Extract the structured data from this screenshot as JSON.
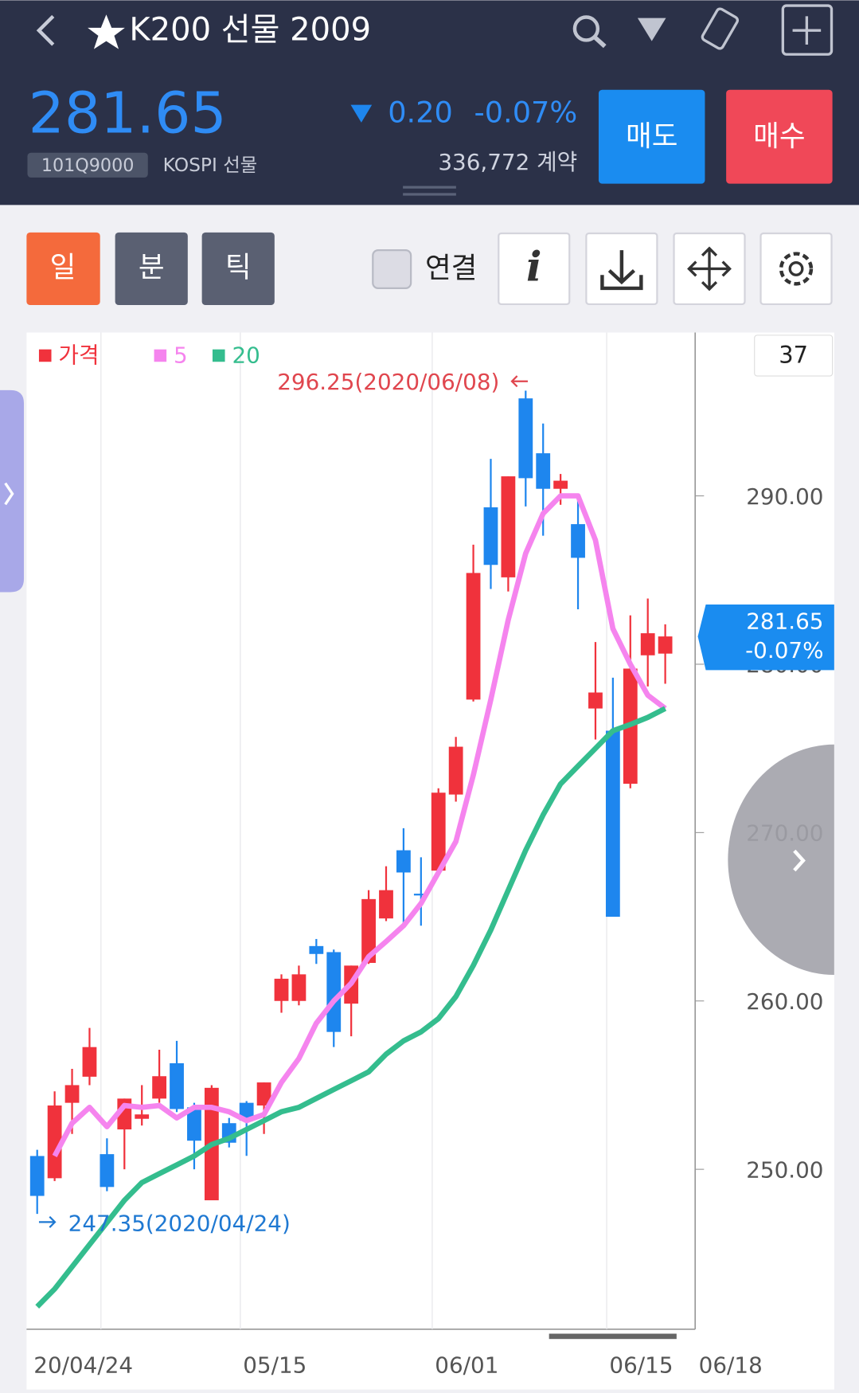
{
  "header": {
    "title": "K200 선물 2009",
    "price": "281.65",
    "change": "0.20",
    "change_pct": "-0.07%",
    "code": "101Q9000",
    "market": "KOSPI 선물",
    "volume": "336,772 계약",
    "sell": "매도",
    "buy": "매수"
  },
  "toolbar": {
    "tabs": [
      "일",
      "분",
      "틱"
    ],
    "link": "연결",
    "info": "i"
  },
  "chart_data": {
    "type": "candlestick",
    "categories": [
      "20/04/24",
      null,
      null,
      null,
      null,
      null,
      null,
      null,
      null,
      null,
      null,
      null,
      "05/15",
      null,
      null,
      null,
      null,
      null,
      null,
      null,
      null,
      null,
      null,
      "06/01",
      null,
      null,
      null,
      null,
      null,
      null,
      null,
      null,
      null,
      "06/15",
      null,
      null,
      "06/18"
    ],
    "candles": {
      "name": "가격",
      "up_color": "#f0323c",
      "down_color": "#1e86ee",
      "open": [
        250.79,
        249.47,
        253.95,
        255.5,
        250.9,
        252.37,
        253.0,
        254.2,
        256.3,
        253.68,
        248.16,
        252.74,
        253.95,
        253.79,
        260.0,
        260.0,
        263.26,
        262.9,
        259.84,
        262.26,
        264.9,
        268.95,
        266.37,
        267.74,
        272.26,
        277.9,
        289.32,
        285.16,
        295.79,
        292.53,
        290.42,
        288.32,
        277.37,
        276.05,
        272.9,
        280.53,
        280.63
      ],
      "high": [
        251.16,
        254.63,
        255.97,
        258.4,
        251.84,
        254.2,
        255.0,
        257.1,
        257.63,
        253.95,
        255.0,
        253.05,
        254.05,
        255.16,
        261.58,
        262.1,
        263.68,
        263.05,
        262.1,
        266.58,
        268.0,
        270.26,
        268.53,
        272.63,
        275.68,
        287.1,
        292.2,
        291.16,
        296.25,
        294.3,
        291.3,
        289.9,
        281.32,
        279.2,
        282.9,
        283.9,
        282.37
      ],
      "low": [
        247.35,
        249.3,
        252.1,
        255.0,
        248.7,
        250.0,
        252.6,
        253.95,
        253.4,
        250.0,
        248.16,
        251.3,
        250.8,
        252.1,
        259.3,
        259.74,
        262.2,
        257.26,
        257.9,
        262.2,
        264.74,
        264.37,
        264.47,
        267.63,
        271.84,
        277.79,
        284.47,
        284.32,
        289.37,
        287.63,
        289.47,
        283.26,
        275.53,
        265.0,
        272.63,
        278.68,
        278.84
      ],
      "close": [
        248.42,
        253.79,
        255.0,
        257.26,
        248.95,
        254.2,
        253.26,
        255.53,
        253.58,
        251.7,
        254.84,
        251.58,
        252.9,
        255.16,
        261.32,
        261.58,
        262.79,
        258.16,
        262.1,
        266.05,
        266.58,
        267.63,
        266.3,
        272.37,
        275.1,
        285.42,
        285.9,
        291.16,
        291.05,
        290.42,
        290.9,
        286.32,
        278.32,
        265.0,
        279.74,
        281.84,
        281.65
      ]
    },
    "series": [
      {
        "name": "5",
        "color": "#f584ee",
        "values": [
          null,
          250.79,
          252.74,
          253.68,
          252.53,
          253.79,
          253.68,
          253.79,
          253.05,
          253.68,
          253.68,
          253.42,
          252.89,
          253.26,
          255.16,
          256.58,
          258.68,
          260.0,
          261.05,
          262.63,
          263.53,
          264.47,
          265.79,
          267.63,
          269.47,
          273.42,
          277.89,
          282.63,
          286.58,
          288.95,
          290.0,
          290.0,
          287.37,
          282.11,
          280.0,
          278.16,
          277.37
        ]
      },
      {
        "name": "20",
        "color": "#34bd8e",
        "values": [
          241.84,
          242.89,
          244.21,
          245.53,
          246.84,
          248.16,
          249.21,
          249.74,
          250.26,
          250.79,
          251.47,
          251.84,
          252.37,
          252.89,
          253.42,
          253.68,
          254.21,
          254.74,
          255.26,
          255.79,
          256.84,
          257.63,
          258.16,
          258.95,
          260.26,
          262.11,
          264.21,
          266.58,
          268.95,
          271.05,
          272.89,
          273.95,
          275.0,
          276.05,
          276.42,
          276.84,
          277.37
        ]
      }
    ],
    "ylim": [
      240.5,
      299.7
    ],
    "yticks": [
      {
        "value": 250,
        "label": "250.00"
      },
      {
        "value": 260,
        "label": "260.00"
      },
      {
        "value": 270,
        "label": "270.00"
      },
      {
        "value": 280,
        "label": "280.00"
      },
      {
        "value": 290,
        "label": "290.00"
      }
    ],
    "annotations": [
      "296.25(2020/06/08)",
      "247.35(2020/04/24)"
    ],
    "visible_count": 37,
    "current_price": 281.65
  }
}
